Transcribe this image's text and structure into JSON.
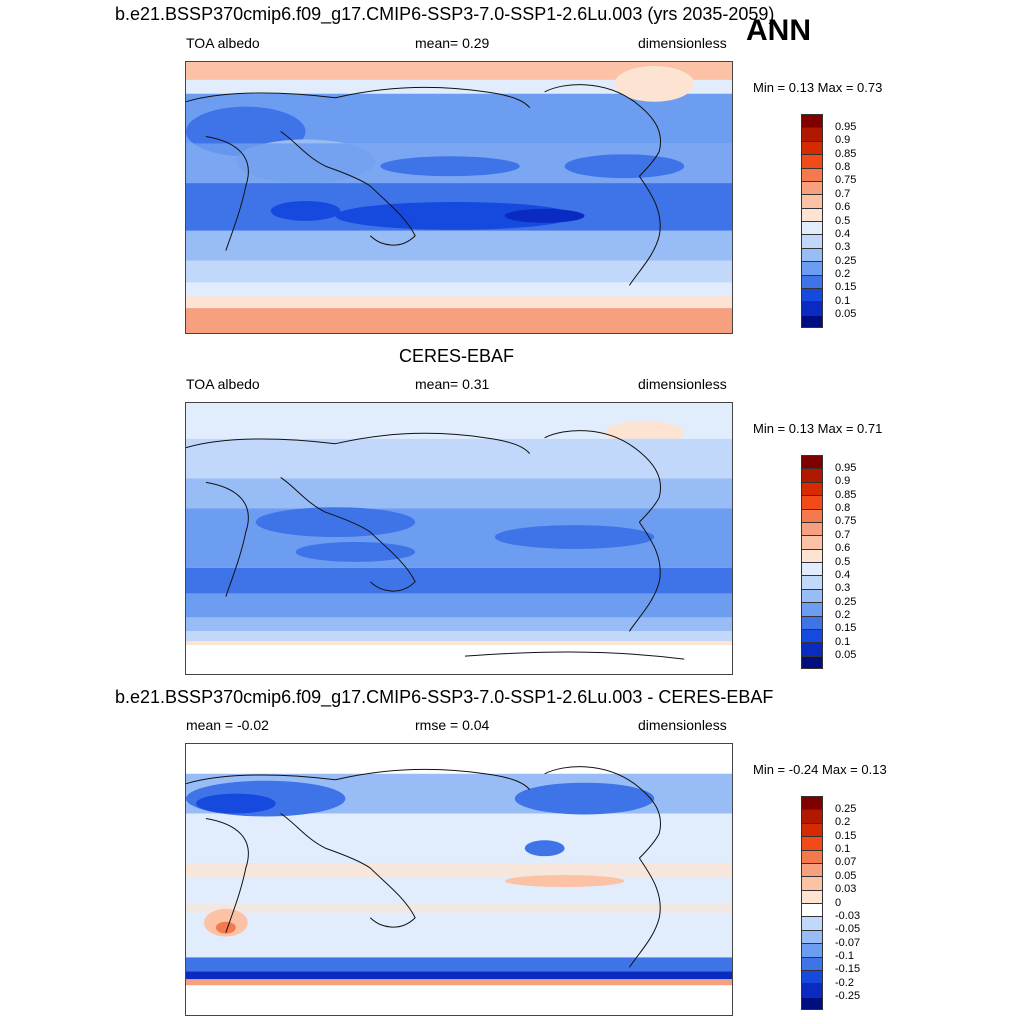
{
  "season": "ANN",
  "panels": [
    {
      "title": "b.e21.BSSP370cmip6.f09_g17.CMIP6-SSP3-7.0-SSP1-2.6Lu.003 (yrs 2035-2059)",
      "left_text": "TOA albedo",
      "center_text": "mean=   0.29",
      "right_text": "dimensionless",
      "minmax": "Min =   0.13 Max =   0.73",
      "colorbar_labels": [
        "0.95",
        "0.9",
        "0.85",
        "0.8",
        "0.75",
        "0.7",
        "0.6",
        "0.5",
        "0.4",
        "0.3",
        "0.25",
        "0.2",
        "0.15",
        "0.1",
        "0.05"
      ],
      "colorbar_colors": [
        "#800000",
        "#b01800",
        "#d62a00",
        "#f34a1a",
        "#f47a4e",
        "#f6a07f",
        "#fcc2a6",
        "#fde4d2",
        "#e1edfd",
        "#c1d8fb",
        "#98bcf5",
        "#6d9df0",
        "#3f73e8",
        "#1649dd",
        "#0a2bc2",
        "#000e80"
      ]
    },
    {
      "title": "CERES-EBAF",
      "left_text": "TOA albedo",
      "center_text": "mean=   0.31",
      "right_text": "dimensionless",
      "minmax": "Min =   0.13 Max =   0.71",
      "colorbar_labels": [
        "0.95",
        "0.9",
        "0.85",
        "0.8",
        "0.75",
        "0.7",
        "0.6",
        "0.5",
        "0.4",
        "0.3",
        "0.25",
        "0.2",
        "0.15",
        "0.1",
        "0.05"
      ],
      "colorbar_colors": [
        "#800000",
        "#b01800",
        "#d62a00",
        "#f34a1a",
        "#f47a4e",
        "#f6a07f",
        "#fcc2a6",
        "#fde4d2",
        "#e1edfd",
        "#c1d8fb",
        "#98bcf5",
        "#6d9df0",
        "#3f73e8",
        "#1649dd",
        "#0a2bc2",
        "#000e80"
      ]
    },
    {
      "title": "b.e21.BSSP370cmip6.f09_g17.CMIP6-SSP3-7.0-SSP1-2.6Lu.003 - CERES-EBAF",
      "left_text": "mean =  -0.02",
      "center_text": "rmse =   0.04",
      "right_text": "dimensionless",
      "minmax": "Min =  -0.24 Max =   0.13",
      "colorbar_labels": [
        "0.25",
        "0.2",
        "0.15",
        "0.1",
        "0.07",
        "0.05",
        "0.03",
        "0",
        "-0.03",
        "-0.05",
        "-0.07",
        "-0.1",
        "-0.15",
        "-0.2",
        "-0.25"
      ],
      "colorbar_colors": [
        "#800000",
        "#b01800",
        "#d62a00",
        "#f34a1a",
        "#f47a4e",
        "#f6a07f",
        "#fcc2a6",
        "#fde4d2",
        "#ffffff",
        "#c1d8fb",
        "#98bcf5",
        "#6d9df0",
        "#3f73e8",
        "#1649dd",
        "#0a2bc2",
        "#000e80"
      ]
    }
  ]
}
